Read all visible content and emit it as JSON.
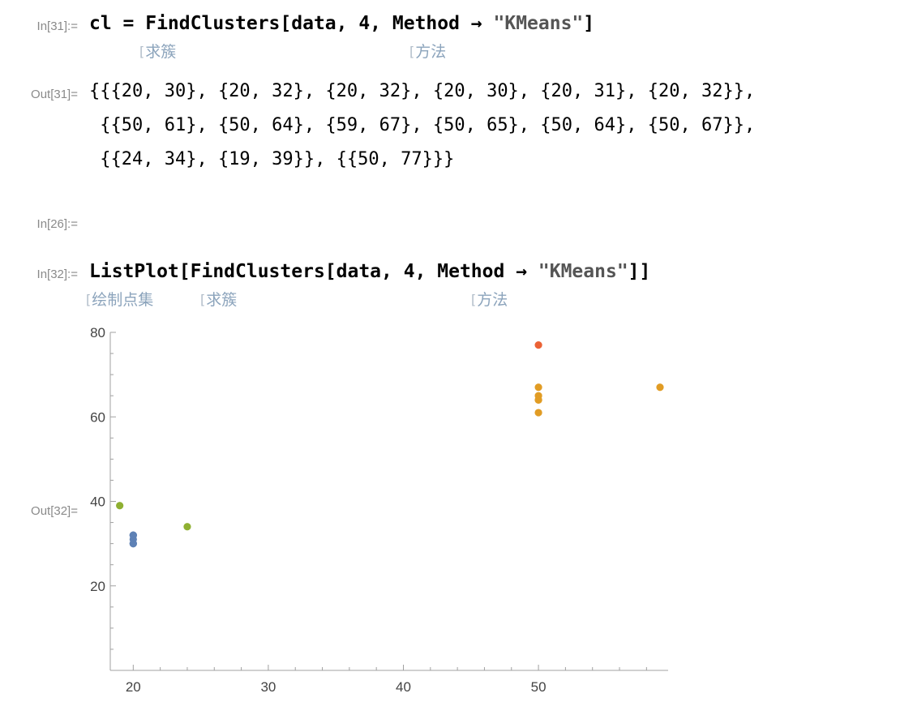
{
  "cells": {
    "in31": {
      "label": "In[31]:=",
      "code_prefix": "cl = FindClusters[data, 4, Method → ",
      "code_string": "\"KMeans\"",
      "code_suffix": "]",
      "hints": [
        "求簇",
        "方法"
      ]
    },
    "out31": {
      "label": "Out[31]=",
      "lines": [
        "{{{20, 30}, {20, 32}, {20, 32}, {20, 30}, {20, 31}, {20, 32}},",
        " {{50, 61}, {50, 64}, {59, 67}, {50, 65}, {50, 64}, {50, 67}},",
        " {{24, 34}, {19, 39}}, {{50, 77}}}"
      ]
    },
    "in26": {
      "label": "In[26]:="
    },
    "in32": {
      "label": "In[32]:=",
      "code_prefix": "ListPlot[FindClusters[data, 4, Method → ",
      "code_string": "\"KMeans\"",
      "code_suffix": "]]",
      "hints": [
        "绘制点集",
        "求簇",
        "方法"
      ]
    },
    "out32": {
      "label": "Out[32]="
    }
  },
  "chart_data": {
    "type": "scatter",
    "title": "",
    "xlabel": "",
    "ylabel": "",
    "xlim": [
      18.3,
      59.6
    ],
    "ylim": [
      0,
      80
    ],
    "xticks": [
      20,
      30,
      40,
      50
    ],
    "yticks": [
      20,
      40,
      60,
      80
    ],
    "grid": false,
    "legend": "none",
    "series": [
      {
        "color": "#5e81b5",
        "points": [
          [
            20,
            30
          ],
          [
            20,
            32
          ],
          [
            20,
            32
          ],
          [
            20,
            30
          ],
          [
            20,
            31
          ],
          [
            20,
            32
          ]
        ]
      },
      {
        "color": "#e19c24",
        "points": [
          [
            50,
            61
          ],
          [
            50,
            64
          ],
          [
            59,
            67
          ],
          [
            50,
            65
          ],
          [
            50,
            64
          ],
          [
            50,
            67
          ]
        ]
      },
      {
        "color": "#8fb032",
        "points": [
          [
            24,
            34
          ],
          [
            19,
            39
          ]
        ]
      },
      {
        "color": "#eb6235",
        "points": [
          [
            50,
            77
          ]
        ]
      }
    ]
  }
}
